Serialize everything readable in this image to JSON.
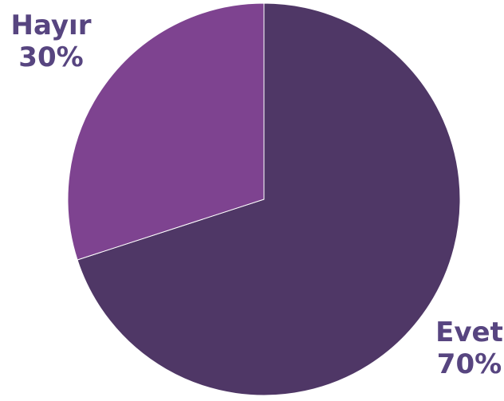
{
  "chart_data": {
    "type": "pie",
    "slices": [
      {
        "name": "Evet",
        "value": 70,
        "label": "70%",
        "color": "#4F3766"
      },
      {
        "name": "Hayır",
        "value": 30,
        "label": "30%",
        "color": "#7E4390"
      }
    ],
    "label_color": "#574580",
    "legend": "none"
  }
}
